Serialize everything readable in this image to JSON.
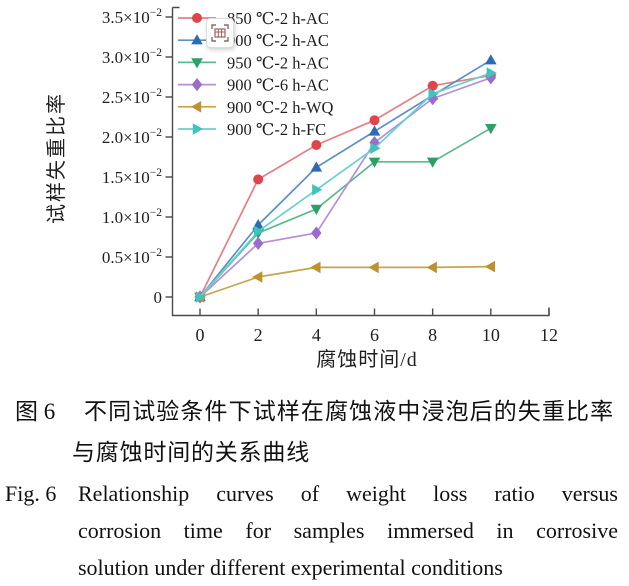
{
  "captions": {
    "zh": {
      "label": "图 6",
      "line1": "不同试验条件下试样在腐蚀液中浸泡后的失重比率",
      "line2": "与腐蚀时间的关系曲线"
    },
    "en": {
      "label": "Fig. 6",
      "line1": "Relationship curves of weight loss ratio versus",
      "line2": "corrosion time for samples immersed in corrosive",
      "line3": "solution under different experimental conditions"
    }
  },
  "overlay_button": {
    "icon": "table-capture-icon"
  },
  "chart_data": {
    "type": "line",
    "title": "",
    "xlabel": "腐蚀时间/d",
    "ylabel": "试样失重比率",
    "grid": false,
    "legend_position": "top-left-inside",
    "xlim": [
      0,
      12
    ],
    "x_ticks": [
      0,
      2,
      4,
      6,
      8,
      10,
      12
    ],
    "y_unit": "×10⁻²",
    "ylim_in_units_of_1e-2": [
      0,
      3.5
    ],
    "y_ticks": [
      {
        "text": "3.5×10",
        "sup": "−2",
        "value": 3.5
      },
      {
        "text": "3.0×10",
        "sup": "−2",
        "value": 3.0
      },
      {
        "text": "2.5×10",
        "sup": "−2",
        "value": 2.5
      },
      {
        "text": "2.0×10",
        "sup": "−2",
        "value": 2.0
      },
      {
        "text": "1.5×10",
        "sup": "−2",
        "value": 1.5
      },
      {
        "text": "1.0×10",
        "sup": "−2",
        "value": 1.0
      },
      {
        "text": "0.5×10",
        "sup": "−2",
        "value": 0.5
      },
      {
        "text": "0",
        "sup": "",
        "value": 0
      }
    ],
    "x": [
      0,
      2,
      4,
      6,
      8,
      10
    ],
    "series": [
      {
        "name": "850 ℃-2 h-AC",
        "marker": "circle",
        "color": "#e0454b",
        "line_color": "#e77e86",
        "values": [
          0,
          1.47,
          1.9,
          2.21,
          2.64,
          2.77
        ]
      },
      {
        "name": "900 ℃-2 h-AC",
        "marker": "triangle-up",
        "color": "#2d6cb5",
        "line_color": "#5d8fc8",
        "values": [
          0,
          0.9,
          1.62,
          2.07,
          2.52,
          2.96
        ]
      },
      {
        "name": "950 ℃-2 h-AC",
        "marker": "triangle-down",
        "color": "#2da06a",
        "line_color": "#5ab98e",
        "values": [
          0,
          0.8,
          1.1,
          1.69,
          1.69,
          2.11
        ]
      },
      {
        "name": "900 ℃-6 h-AC",
        "marker": "diamond",
        "color": "#9b6ccb",
        "line_color": "#b490da",
        "values": [
          0,
          0.67,
          0.8,
          1.93,
          2.48,
          2.74
        ]
      },
      {
        "name": "900 ℃-2 h-WQ",
        "marker": "triangle-left",
        "color": "#bd9030",
        "line_color": "#c7a44e",
        "values": [
          0,
          0.25,
          0.37,
          0.37,
          0.37,
          0.38
        ]
      },
      {
        "name": "900 ℃-2 h-FC",
        "marker": "triangle-right",
        "color": "#3ec4bc",
        "line_color": "#6ad1c9",
        "values": [
          0,
          0.82,
          1.34,
          1.86,
          2.54,
          2.8
        ]
      }
    ]
  }
}
